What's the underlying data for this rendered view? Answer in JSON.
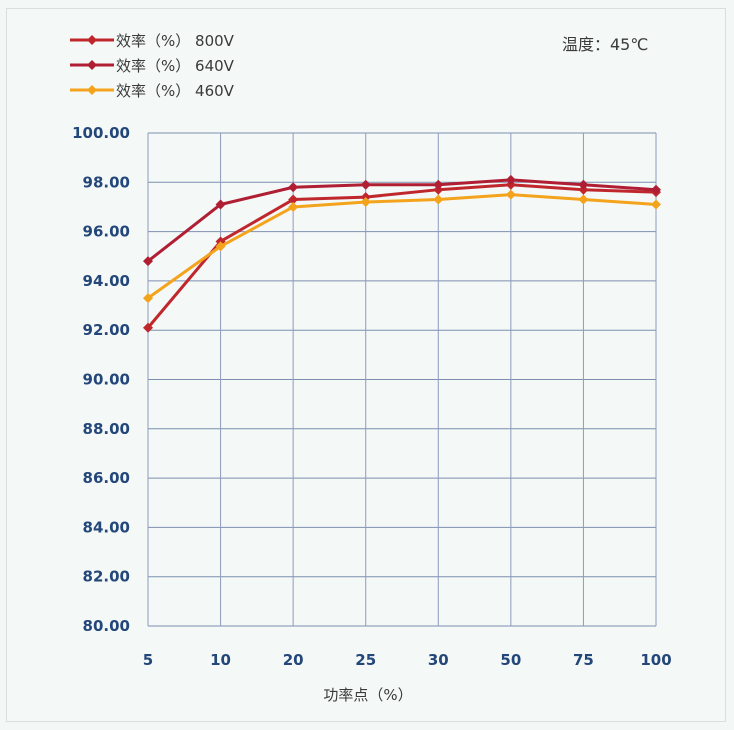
{
  "chart_data": {
    "type": "line",
    "categories": [
      "5",
      "10",
      "20",
      "25",
      "30",
      "50",
      "75",
      "100"
    ],
    "series": [
      {
        "name": "效率（%） 800V",
        "color": "#c0272d",
        "values": [
          92.1,
          95.6,
          97.3,
          97.4,
          97.7,
          97.9,
          97.7,
          97.6
        ]
      },
      {
        "name": "效率（%） 640V",
        "color": "#b01e33",
        "values": [
          94.8,
          97.1,
          97.8,
          97.9,
          97.9,
          98.1,
          97.9,
          97.7
        ]
      },
      {
        "name": "效率（%） 460V",
        "color": "#f4a31c",
        "values": [
          93.3,
          95.4,
          97.0,
          97.2,
          97.3,
          97.5,
          97.3,
          97.1
        ]
      }
    ],
    "yticks": [
      "80.00",
      "82.00",
      "84.00",
      "86.00",
      "88.00",
      "90.00",
      "92.00",
      "94.00",
      "96.00",
      "98.00",
      "100.00"
    ],
    "ylim": [
      80,
      100
    ],
    "xlabel": "功率点（%）",
    "annotation": "温度：45℃",
    "grid": true,
    "legend_position": "top-left"
  }
}
